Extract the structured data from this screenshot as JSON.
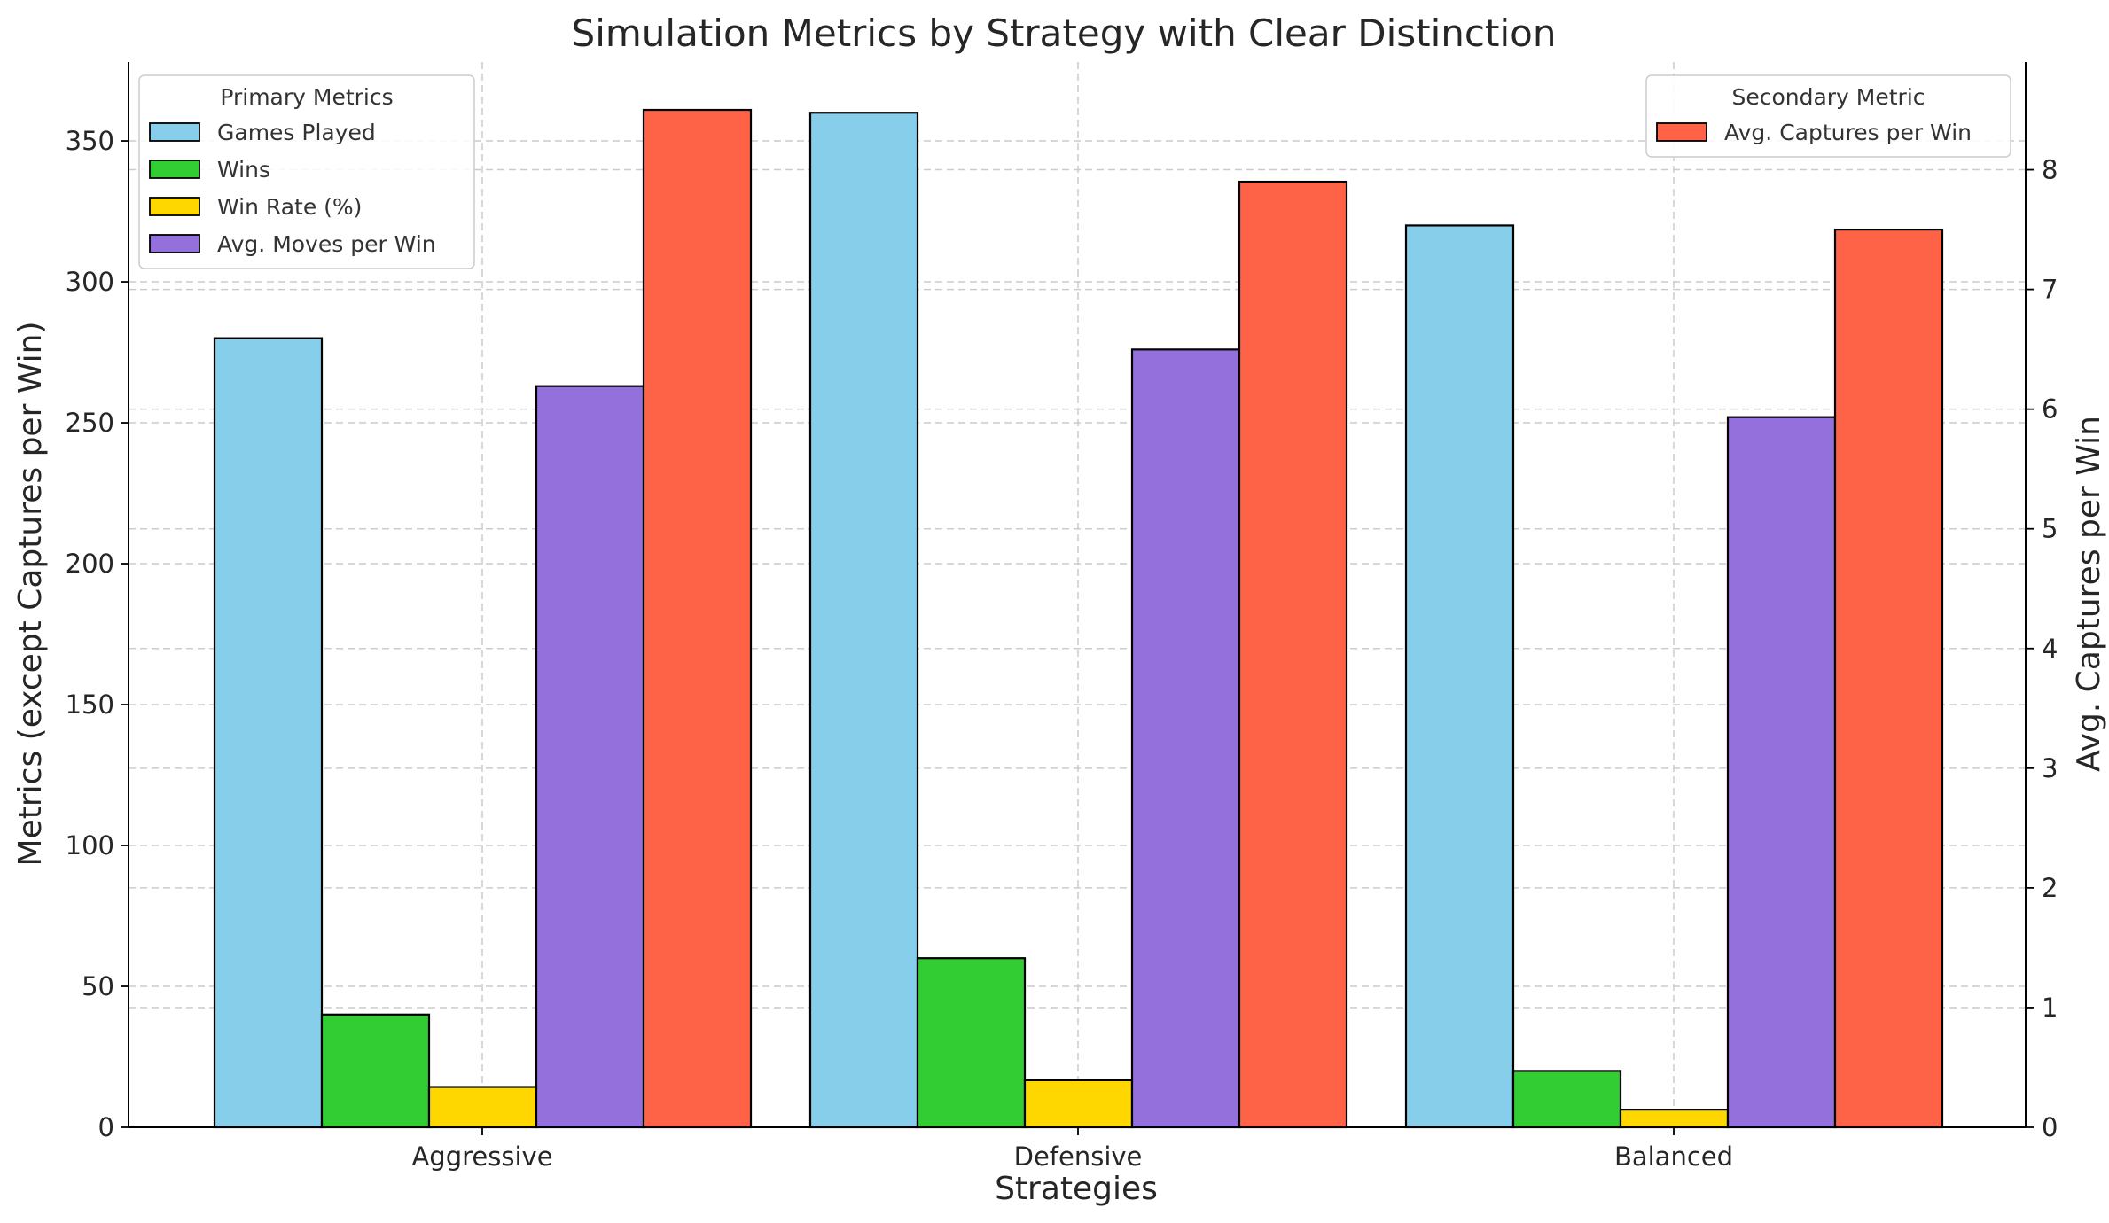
{
  "chart_data": {
    "type": "bar",
    "title": "Simulation Metrics by Strategy with Clear Distinction",
    "xlabel": "Strategies",
    "ylabel": "Metrics (except Captures per Win)",
    "ylabel_right": "Avg. Captures per Win",
    "categories": [
      "Aggressive",
      "Defensive",
      "Balanced"
    ],
    "ylim": [
      0,
      378
    ],
    "ylim_right": [
      0,
      8.9
    ],
    "yticks": [
      "0",
      "50",
      "100",
      "150",
      "200",
      "250",
      "300",
      "350"
    ],
    "yticks_right": [
      "0",
      "1",
      "2",
      "3",
      "4",
      "5",
      "6",
      "7",
      "8"
    ],
    "grid": true,
    "series": [
      {
        "name": "Games Played",
        "axis": "left",
        "color": "#87CEEB",
        "values": [
          280,
          360,
          320
        ]
      },
      {
        "name": "Wins",
        "axis": "left",
        "color": "#32CD32",
        "values": [
          40,
          60,
          20
        ]
      },
      {
        "name": "Win Rate (%)",
        "axis": "left",
        "color": "#FFD700",
        "values": [
          14.3,
          16.7,
          6.25
        ]
      },
      {
        "name": "Avg. Moves per Win",
        "axis": "left",
        "color": "#9370DB",
        "values": [
          263,
          276,
          252
        ]
      },
      {
        "name": "Avg. Captures per Win",
        "axis": "right",
        "color": "#FF6347",
        "values": [
          8.5,
          7.9,
          7.5
        ]
      }
    ],
    "legend_primary": {
      "title": "Primary Metrics",
      "placement": "top-left"
    },
    "legend_secondary": {
      "title": "Secondary Metric",
      "placement": "top-right"
    }
  }
}
